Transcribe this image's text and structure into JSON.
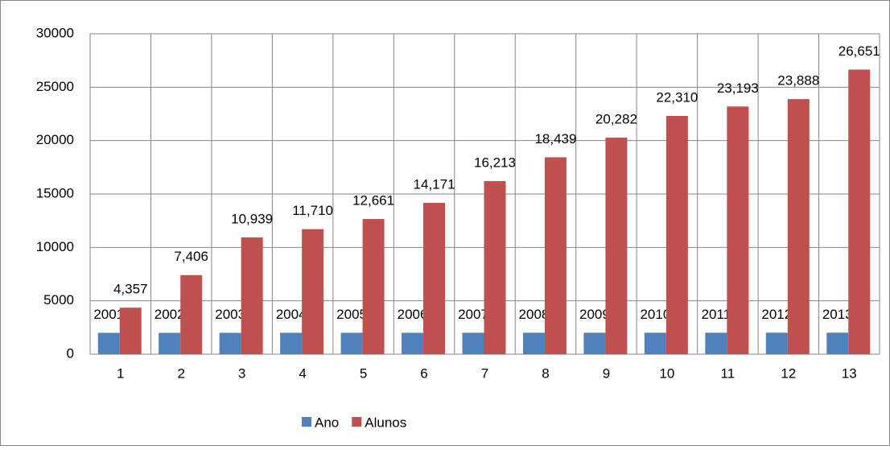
{
  "chart_data": {
    "type": "bar",
    "categories": [
      "1",
      "2",
      "3",
      "4",
      "5",
      "6",
      "7",
      "8",
      "9",
      "10",
      "11",
      "12",
      "13"
    ],
    "series": [
      {
        "name": "Ano",
        "color": "#4f81bd",
        "values": [
          2001,
          2002,
          2003,
          2004,
          2005,
          2006,
          2007,
          2008,
          2009,
          2010,
          2011,
          2012,
          2013
        ]
      },
      {
        "name": "Alunos",
        "color": "#c0504d",
        "values": [
          4357,
          7406,
          10939,
          11710,
          12661,
          14171,
          16213,
          18439,
          20282,
          22310,
          23193,
          23888,
          26651
        ],
        "value_labels": [
          "4,357",
          "7,406",
          "10,939",
          "11,710",
          "12,661",
          "14,171",
          "16,213",
          "18,439",
          "20,282",
          "22,310",
          "23,193",
          "23,888",
          "26,651"
        ]
      }
    ],
    "ylim": [
      0,
      30000
    ],
    "yticks": [
      0,
      5000,
      10000,
      15000,
      20000,
      25000,
      30000
    ],
    "grid": true,
    "legend": "bottom"
  }
}
